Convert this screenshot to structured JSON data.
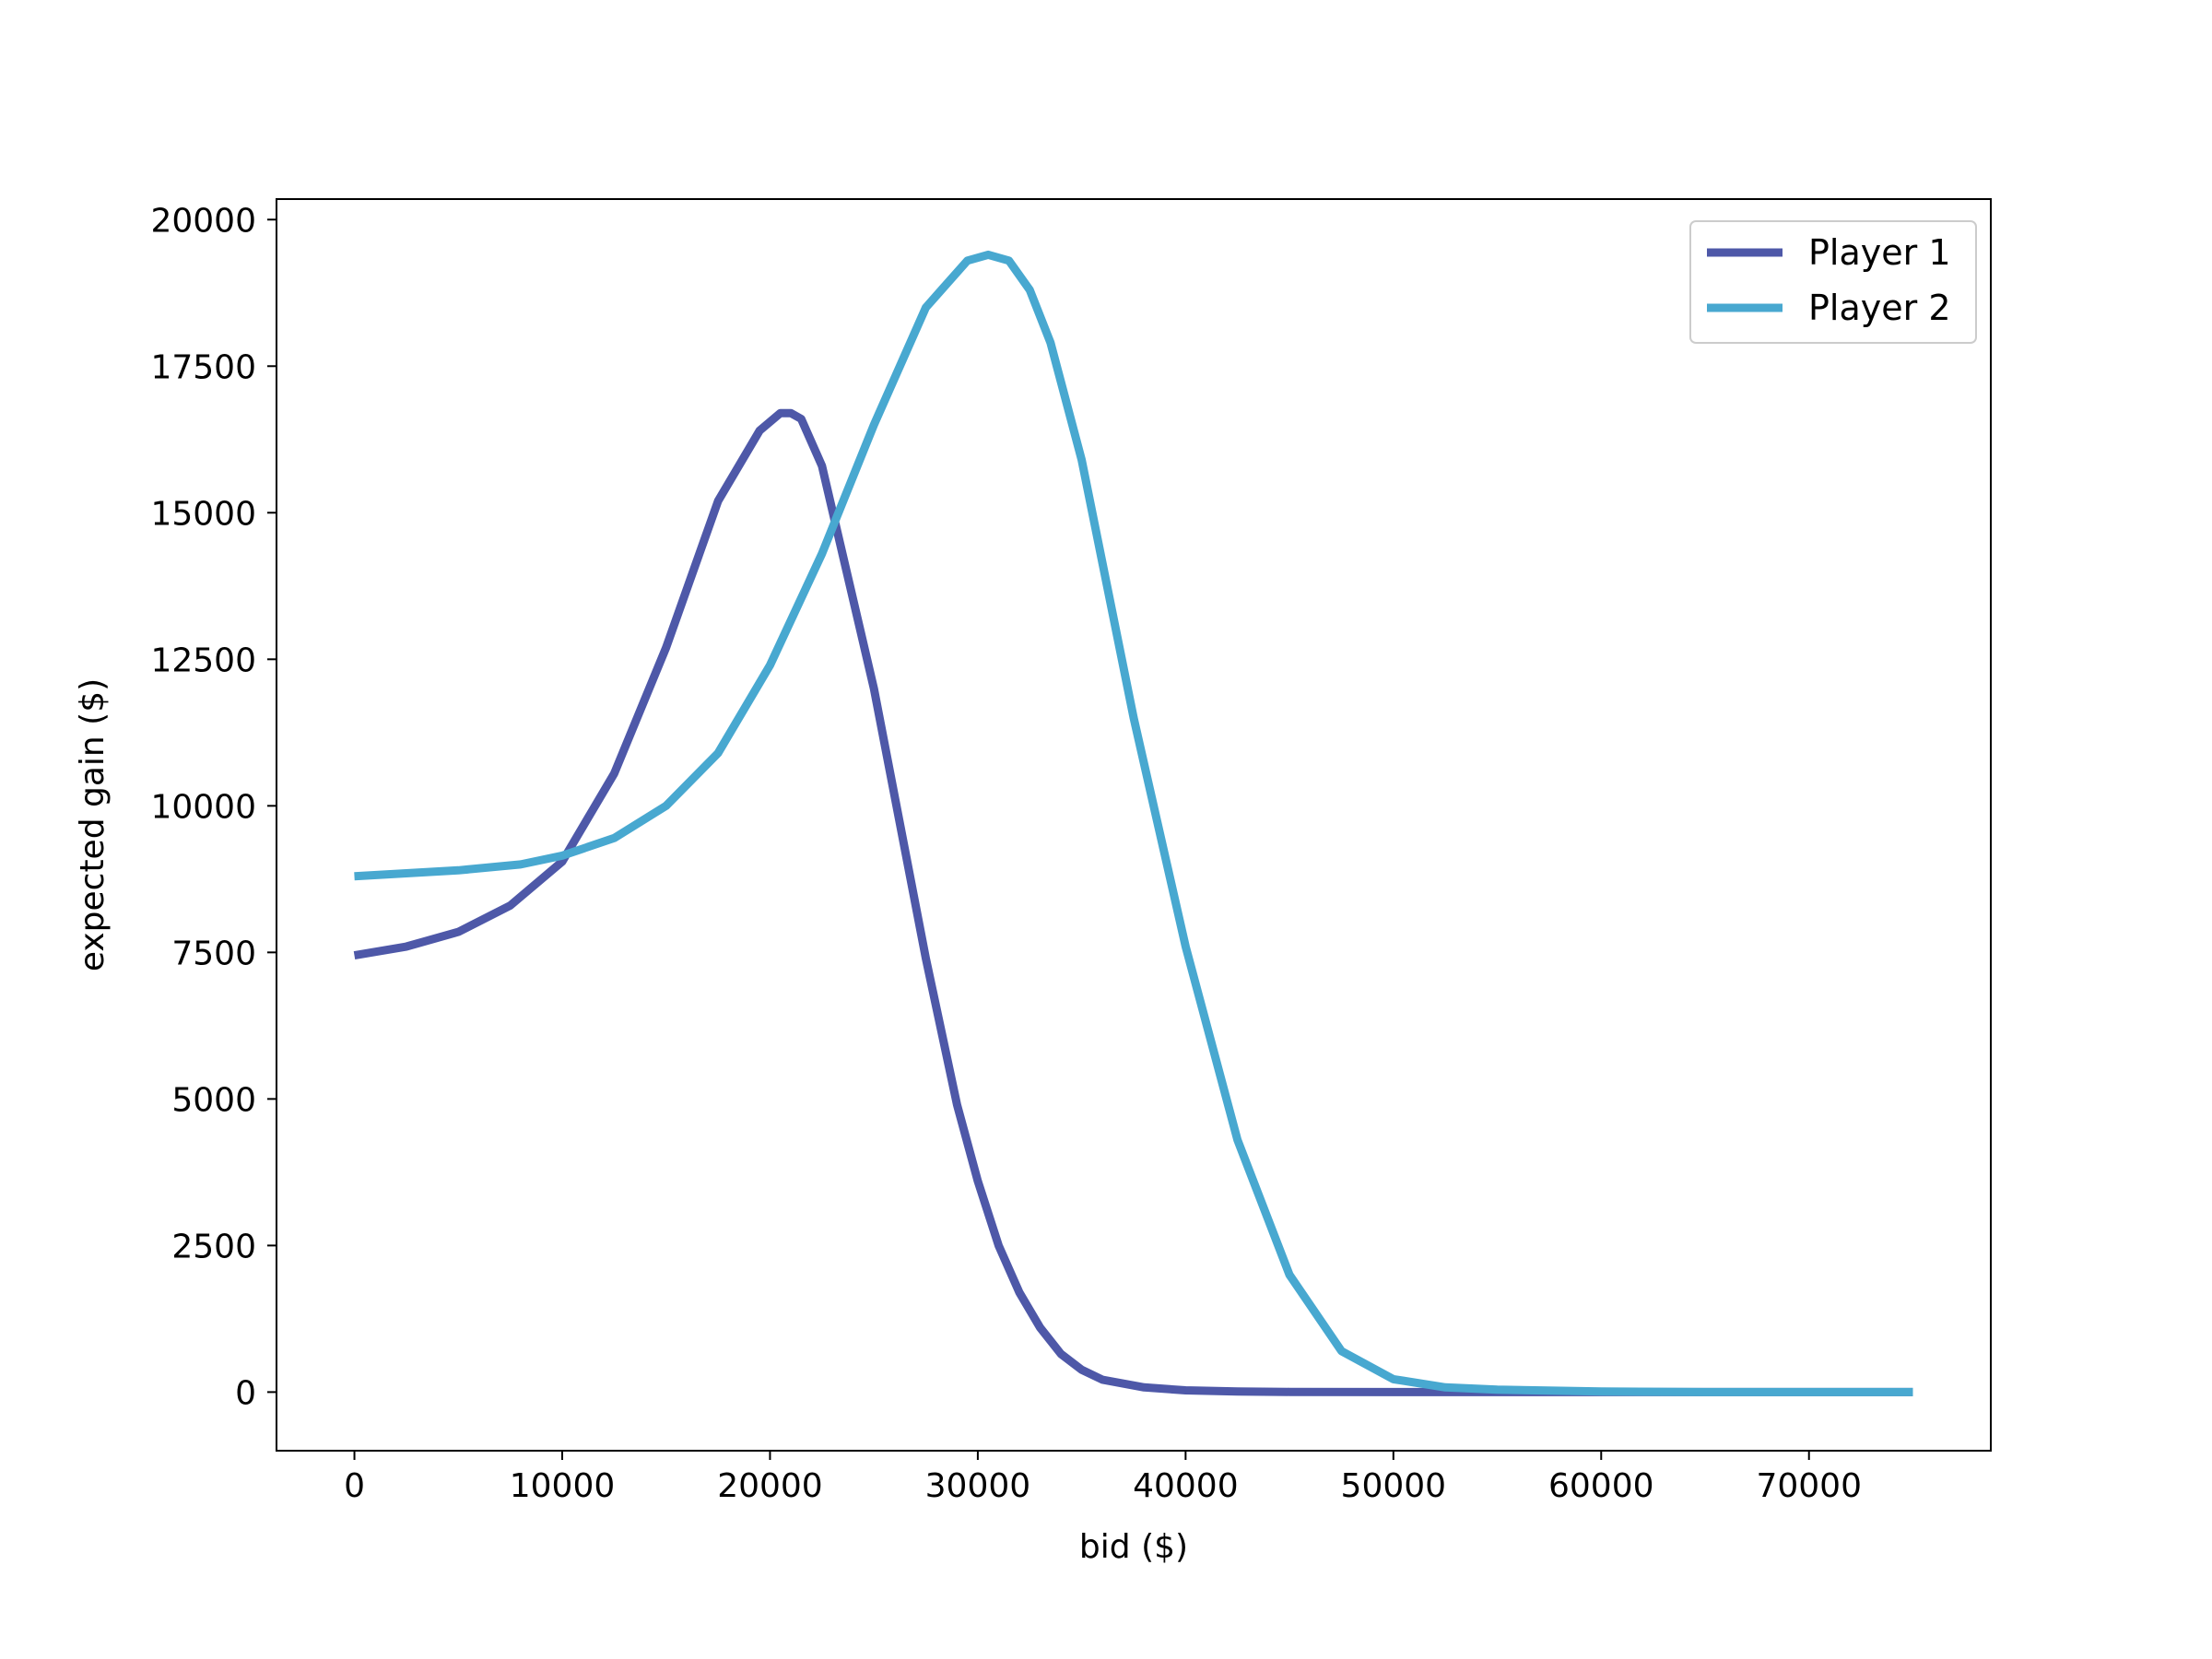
{
  "chart_data": {
    "type": "line",
    "title": "",
    "xlabel": "bid ($)",
    "ylabel": "expected gain ($)",
    "xlim": [
      -3750,
      78750
    ],
    "ylim": [
      -1000,
      20350
    ],
    "xticks": [
      0,
      10000,
      20000,
      30000,
      40000,
      50000,
      60000,
      70000
    ],
    "yticks": [
      0,
      2500,
      5000,
      7500,
      10000,
      12500,
      15000,
      17500,
      20000
    ],
    "grid": false,
    "legend_position": "top-right",
    "series": [
      {
        "name": "Player 1",
        "color": "#4e58a8",
        "x": [
          0,
          2500,
          5000,
          7500,
          10000,
          12500,
          15000,
          17500,
          19500,
          20500,
          21000,
          21500,
          22500,
          25000,
          27500,
          29000,
          30000,
          31000,
          32000,
          33000,
          34000,
          35000,
          36000,
          38000,
          40000,
          42500,
          45000,
          50000,
          60000,
          75000
        ],
        "y": [
          7450,
          7600,
          7850,
          8300,
          9050,
          10550,
          12700,
          15200,
          16400,
          16700,
          16700,
          16600,
          15800,
          12000,
          7400,
          4900,
          3600,
          2500,
          1700,
          1100,
          650,
          380,
          210,
          80,
          30,
          10,
          3,
          0,
          0,
          0
        ]
      },
      {
        "name": "Player 2",
        "color": "#48a8d0",
        "x": [
          0,
          5000,
          8000,
          10000,
          12500,
          15000,
          17500,
          20000,
          22500,
          25000,
          27500,
          29500,
          30500,
          31500,
          32500,
          33500,
          35000,
          37500,
          40000,
          42500,
          45000,
          47500,
          50000,
          52500,
          55000,
          60000,
          65000,
          75000
        ],
        "y": [
          8800,
          8900,
          9000,
          9150,
          9450,
          10000,
          10900,
          12400,
          14300,
          16500,
          18500,
          19300,
          19400,
          19300,
          18800,
          17900,
          15900,
          11500,
          7600,
          4300,
          2000,
          700,
          220,
          80,
          40,
          10,
          0,
          0
        ]
      }
    ]
  }
}
